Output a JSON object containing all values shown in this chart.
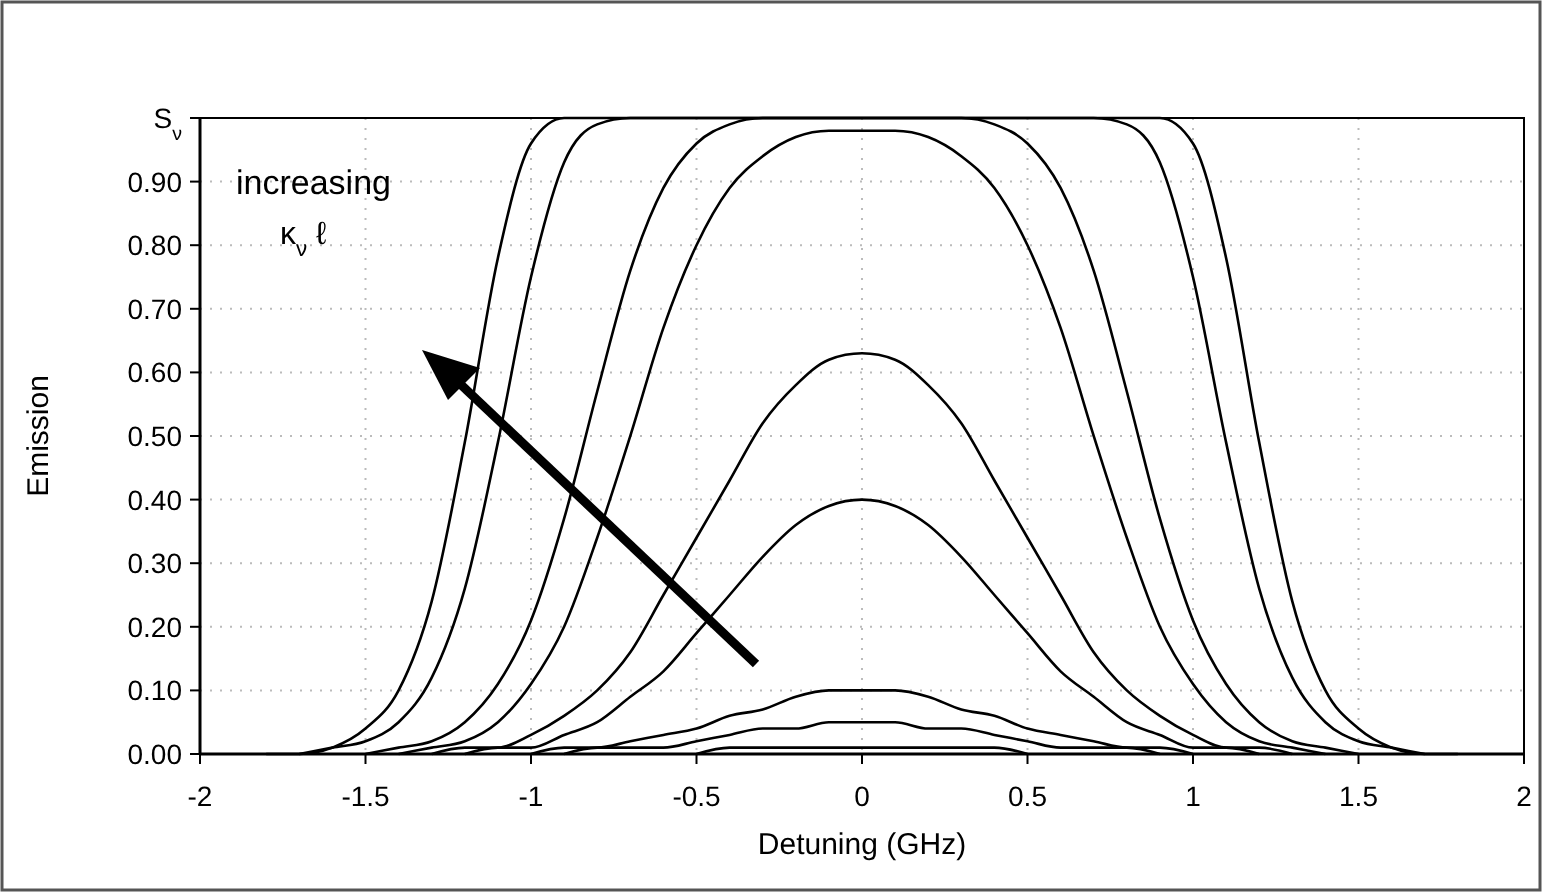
{
  "chart_data": {
    "type": "line",
    "xlabel": "Detuning (GHz)",
    "ylabel": "Emission",
    "annotations": [
      "increasing",
      "κ$_{ν}$ ℓ"
    ],
    "xlim": [
      -2,
      2
    ],
    "xticks": [
      -2,
      -1.5,
      -1,
      -0.5,
      0,
      0.5,
      1,
      1.5,
      2
    ],
    "ylim": [
      0,
      1
    ],
    "yticks": [
      {
        "value": 0,
        "label": "0.00"
      },
      {
        "value": 0.1,
        "label": "0.10"
      },
      {
        "value": 0.2,
        "label": "0.20"
      },
      {
        "value": 0.3,
        "label": "0.30"
      },
      {
        "value": 0.4,
        "label": "0.40"
      },
      {
        "value": 0.5,
        "label": "0.50"
      },
      {
        "value": 0.6,
        "label": "0.60"
      },
      {
        "value": 0.7,
        "label": "0.70"
      },
      {
        "value": 0.8,
        "label": "0.80"
      },
      {
        "value": 0.9,
        "label": "0.90"
      },
      {
        "value": 1,
        "label": "S$_{ν}$"
      }
    ],
    "grid": true,
    "marker": "none",
    "line_style": "solid",
    "series": [
      {
        "color": "#000000",
        "x": [
          -1.8,
          -1.7,
          -1.6,
          -1.5,
          -1.4,
          -1.3,
          -1.2,
          -1.1,
          -1,
          -0.9,
          -0.8,
          -0.7,
          -0.6,
          -0.5,
          -0.4,
          -0.3,
          -0.2,
          -0.1,
          0,
          0.1,
          0.2,
          0.3,
          0.4,
          0.5,
          0.6,
          0.7,
          0.8,
          0.9,
          1,
          1.1,
          1.2,
          1.3,
          1.4,
          1.5,
          1.6,
          1.7,
          1.8
        ],
        "values": [
          0,
          0,
          0.01,
          0.04,
          0.1,
          0.24,
          0.49,
          0.78,
          0.96,
          1,
          1,
          1,
          1,
          1,
          1,
          1,
          1,
          1,
          1,
          1,
          1,
          1,
          1,
          1,
          1,
          1,
          1,
          1,
          0.96,
          0.78,
          0.49,
          0.24,
          0.1,
          0.04,
          0.01,
          0,
          0
        ]
      },
      {
        "color": "#000000",
        "x": [
          -1.7,
          -1.6,
          -1.5,
          -1.4,
          -1.3,
          -1.2,
          -1.1,
          -1,
          -0.9,
          -0.8,
          -0.7,
          -0.6,
          -0.5,
          -0.4,
          -0.3,
          -0.2,
          -0.1,
          0,
          0.1,
          0.2,
          0.3,
          0.4,
          0.5,
          0.6,
          0.7,
          0.8,
          0.9,
          1,
          1.1,
          1.2,
          1.3,
          1.4,
          1.5,
          1.6,
          1.7
        ],
        "values": [
          0,
          0.01,
          0.02,
          0.05,
          0.12,
          0.26,
          0.49,
          0.75,
          0.93,
          0.99,
          1,
          1,
          1,
          1,
          1,
          1,
          1,
          1,
          1,
          1,
          1,
          1,
          1,
          1,
          1,
          0.99,
          0.93,
          0.75,
          0.49,
          0.26,
          0.12,
          0.05,
          0.02,
          0.01,
          0
        ]
      },
      {
        "color": "#000000",
        "x": [
          -1.5,
          -1.4,
          -1.3,
          -1.2,
          -1.1,
          -1,
          -0.9,
          -0.8,
          -0.7,
          -0.6,
          -0.5,
          -0.4,
          -0.3,
          -0.2,
          -0.1,
          0,
          0.1,
          0.2,
          0.3,
          0.4,
          0.5,
          0.6,
          0.7,
          0.8,
          0.9,
          1,
          1.1,
          1.2,
          1.3,
          1.4,
          1.5
        ],
        "values": [
          0,
          0.01,
          0.02,
          0.05,
          0.11,
          0.21,
          0.37,
          0.57,
          0.76,
          0.89,
          0.96,
          0.99,
          1,
          1,
          1,
          1,
          1,
          1,
          1,
          0.99,
          0.96,
          0.89,
          0.76,
          0.57,
          0.37,
          0.21,
          0.11,
          0.05,
          0.02,
          0.01,
          0
        ]
      },
      {
        "color": "#000000",
        "x": [
          -1.4,
          -1.3,
          -1.2,
          -1.1,
          -1,
          -0.9,
          -0.8,
          -0.7,
          -0.6,
          -0.5,
          -0.4,
          -0.3,
          -0.2,
          -0.1,
          0,
          0.1,
          0.2,
          0.3,
          0.4,
          0.5,
          0.6,
          0.7,
          0.8,
          0.9,
          1,
          1.1,
          1.2,
          1.3,
          1.4
        ],
        "values": [
          0,
          0.01,
          0.02,
          0.05,
          0.11,
          0.2,
          0.34,
          0.5,
          0.67,
          0.8,
          0.89,
          0.94,
          0.97,
          0.98,
          0.98,
          0.98,
          0.97,
          0.94,
          0.89,
          0.8,
          0.67,
          0.5,
          0.34,
          0.2,
          0.11,
          0.05,
          0.02,
          0.01,
          0
        ]
      },
      {
        "color": "#000000",
        "x": [
          -1.3,
          -1.2,
          -1.1,
          -1,
          -0.9,
          -0.8,
          -0.7,
          -0.6,
          -0.5,
          -0.4,
          -0.3,
          -0.2,
          -0.1,
          0,
          0.1,
          0.2,
          0.3,
          0.4,
          0.5,
          0.6,
          0.7,
          0.8,
          0.9,
          1,
          1.1,
          1.2,
          1.3
        ],
        "values": [
          0,
          0.01,
          0.01,
          0.03,
          0.06,
          0.1,
          0.16,
          0.25,
          0.34,
          0.43,
          0.52,
          0.58,
          0.62,
          0.63,
          0.62,
          0.58,
          0.52,
          0.43,
          0.34,
          0.25,
          0.16,
          0.1,
          0.06,
          0.03,
          0.01,
          0.01,
          0
        ]
      },
      {
        "color": "#000000",
        "x": [
          -1.2,
          -1.1,
          -1,
          -0.9,
          -0.8,
          -0.7,
          -0.6,
          -0.5,
          -0.4,
          -0.3,
          -0.2,
          -0.1,
          0,
          0.1,
          0.2,
          0.3,
          0.4,
          0.5,
          0.6,
          0.7,
          0.8,
          0.9,
          1,
          1.1,
          1.2
        ],
        "values": [
          0,
          0.01,
          0.01,
          0.03,
          0.05,
          0.09,
          0.13,
          0.19,
          0.25,
          0.31,
          0.36,
          0.39,
          0.4,
          0.39,
          0.36,
          0.31,
          0.25,
          0.19,
          0.13,
          0.09,
          0.05,
          0.03,
          0.01,
          0.01,
          0
        ]
      },
      {
        "color": "#000000",
        "x": [
          -1,
          -0.9,
          -0.8,
          -0.7,
          -0.6,
          -0.5,
          -0.4,
          -0.3,
          -0.2,
          -0.1,
          0,
          0.1,
          0.2,
          0.3,
          0.4,
          0.5,
          0.6,
          0.7,
          0.8,
          0.9,
          1
        ],
        "values": [
          0,
          0.01,
          0.01,
          0.02,
          0.03,
          0.04,
          0.06,
          0.07,
          0.09,
          0.1,
          0.1,
          0.1,
          0.09,
          0.07,
          0.06,
          0.04,
          0.03,
          0.02,
          0.01,
          0.01,
          0
        ]
      },
      {
        "color": "#000000",
        "x": [
          -0.9,
          -0.8,
          -0.7,
          -0.6,
          -0.5,
          -0.4,
          -0.3,
          -0.2,
          -0.1,
          0,
          0.1,
          0.2,
          0.3,
          0.4,
          0.5,
          0.6,
          0.7,
          0.8,
          0.9
        ],
        "values": [
          0,
          0.01,
          0.01,
          0.01,
          0.02,
          0.03,
          0.04,
          0.04,
          0.05,
          0.05,
          0.05,
          0.04,
          0.04,
          0.03,
          0.02,
          0.01,
          0.01,
          0.01,
          0
        ]
      },
      {
        "color": "#000000",
        "x": [
          -0.5,
          -0.4,
          -0.3,
          -0.2,
          -0.1,
          0,
          0.1,
          0.2,
          0.3,
          0.4,
          0.5
        ],
        "values": [
          0,
          0.01,
          0.01,
          0.01,
          0.01,
          0.01,
          0.01,
          0.01,
          0.01,
          0.01,
          0
        ]
      }
    ]
  }
}
